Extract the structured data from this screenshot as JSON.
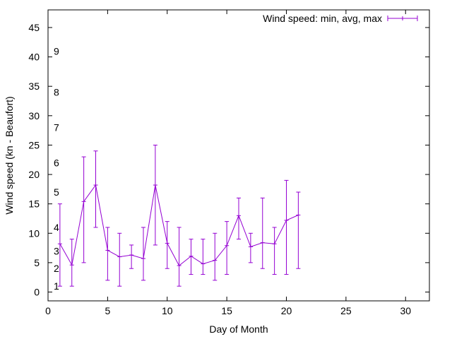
{
  "chart_data": {
    "type": "line",
    "xlabel": "Day of Month",
    "ylabel": "Wind speed (kn - Beaufort)",
    "xlim": [
      0,
      32
    ],
    "ylim": [
      -1.5,
      48
    ],
    "x_ticks": [
      "0",
      "5",
      "10",
      "15",
      "20",
      "25",
      "30"
    ],
    "y_ticks": [
      "0",
      "5",
      "10",
      "15",
      "20",
      "25",
      "30",
      "35",
      "40",
      "45"
    ],
    "beaufort_labels": [
      {
        "value": 1,
        "label": "1"
      },
      {
        "value": 4,
        "label": "2"
      },
      {
        "value": 7,
        "label": "3"
      },
      {
        "value": 11,
        "label": "4"
      },
      {
        "value": 17,
        "label": "5"
      },
      {
        "value": 22,
        "label": "6"
      },
      {
        "value": 28,
        "label": "7"
      },
      {
        "value": 34,
        "label": "8"
      },
      {
        "value": 41,
        "label": "9"
      }
    ],
    "grid": false,
    "legend_position": "top-right",
    "series": [
      {
        "name": "Wind speed: min, avg, max",
        "color": "#9400d3",
        "points": [
          {
            "x": 1,
            "y": 8.2,
            "min": 1,
            "max": 15
          },
          {
            "x": 2,
            "y": 4.6,
            "min": 1,
            "max": 9
          },
          {
            "x": 3,
            "y": 15.4,
            "min": 5,
            "max": 23
          },
          {
            "x": 4,
            "y": 18.2,
            "min": 11,
            "max": 24
          },
          {
            "x": 5,
            "y": 7.1,
            "min": 2,
            "max": 11
          },
          {
            "x": 6,
            "y": 6.0,
            "min": 1,
            "max": 10
          },
          {
            "x": 7,
            "y": 6.3,
            "min": 4,
            "max": 8
          },
          {
            "x": 8,
            "y": 5.7,
            "min": 2,
            "max": 11
          },
          {
            "x": 9,
            "y": 18.2,
            "min": 8,
            "max": 25
          },
          {
            "x": 10,
            "y": 8.3,
            "min": 4,
            "max": 12
          },
          {
            "x": 11,
            "y": 4.5,
            "min": 1,
            "max": 11
          },
          {
            "x": 12,
            "y": 6.1,
            "min": 3,
            "max": 9
          },
          {
            "x": 13,
            "y": 4.8,
            "min": 3,
            "max": 9
          },
          {
            "x": 14,
            "y": 5.4,
            "min": 2,
            "max": 10
          },
          {
            "x": 15,
            "y": 7.9,
            "min": 3,
            "max": 12
          },
          {
            "x": 16,
            "y": 13.0,
            "min": 9,
            "max": 16
          },
          {
            "x": 17,
            "y": 7.7,
            "min": 5,
            "max": 10
          },
          {
            "x": 18,
            "y": 8.4,
            "min": 4,
            "max": 16
          },
          {
            "x": 19,
            "y": 8.2,
            "min": 3,
            "max": 11
          },
          {
            "x": 20,
            "y": 12.2,
            "min": 3,
            "max": 19
          },
          {
            "x": 21,
            "y": 13.1,
            "min": 4,
            "max": 17
          }
        ]
      }
    ]
  }
}
